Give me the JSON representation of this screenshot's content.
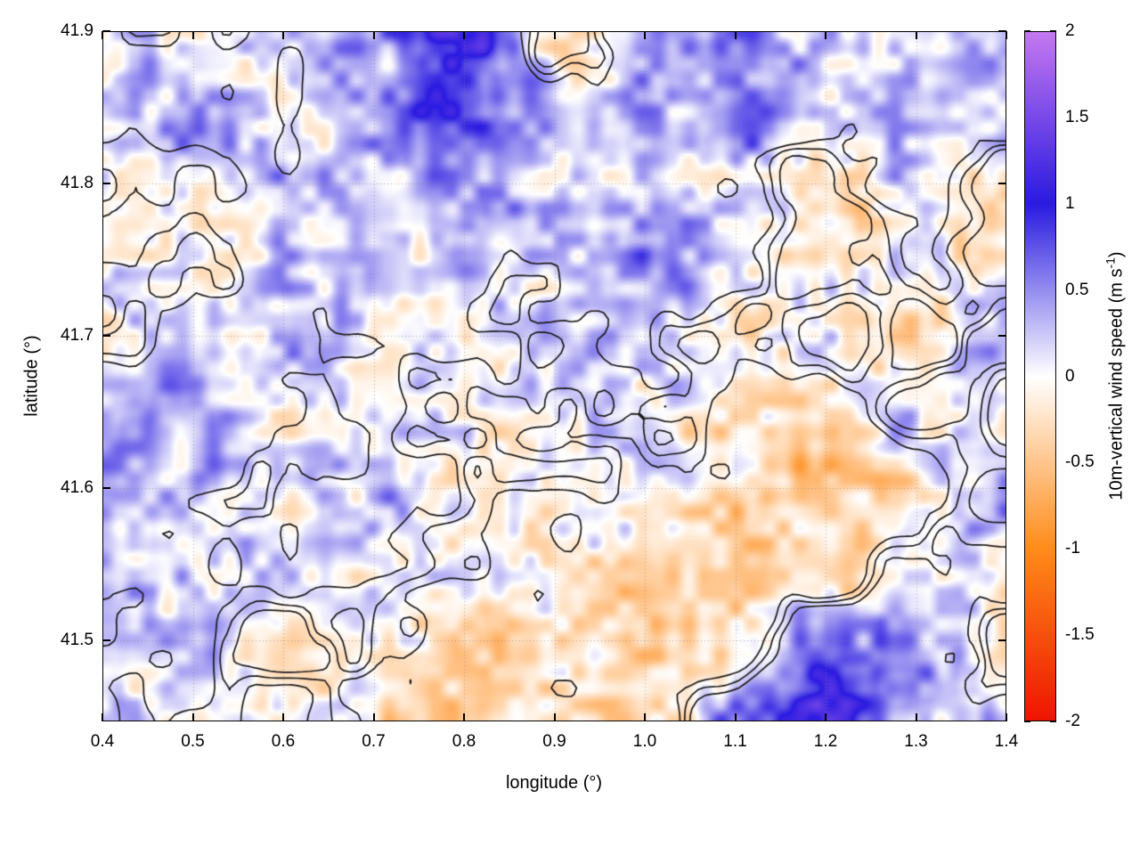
{
  "figure": {
    "background": "#ffffff"
  },
  "chart_data": {
    "type": "heatmap",
    "title": "",
    "xlabel": "longitude (°)",
    "ylabel": "latitude (°)",
    "x_range": [
      0.4,
      1.4
    ],
    "y_range": [
      41.447,
      41.9
    ],
    "x_ticks": [
      "0.4",
      "0.5",
      "0.6",
      "0.7",
      "0.8",
      "0.9",
      "1.0",
      "1.1",
      "1.2",
      "1.3",
      "1.4"
    ],
    "y_ticks": [
      "41.5",
      "41.6",
      "41.7",
      "41.8",
      "41.9"
    ],
    "grid": true,
    "colorbar": {
      "label_main": "10m-vertical wind speed (m s",
      "label_sup": "-1",
      "label_close": ")",
      "range": [
        -2,
        2
      ],
      "ticks": [
        "2",
        "1.5",
        "1",
        "0.5",
        "0",
        "-0.5",
        "-1",
        "-1.5",
        "-2"
      ],
      "palette_stops": [
        {
          "value": -2,
          "color": "#ee1400"
        },
        {
          "value": -1,
          "color": "#ff8c1a"
        },
        {
          "value": 0,
          "color": "#ffffff"
        },
        {
          "value": 1,
          "color": "#2a1ae0"
        },
        {
          "value": 2,
          "color": "#c478f0"
        }
      ]
    },
    "contours": {
      "color": "#1a1a1a",
      "levels": [
        -0.1,
        0,
        0.1
      ],
      "labeled": false
    },
    "field": {
      "units": "m s-1",
      "noise_amplitude": 0.5,
      "grid_lons": [
        0.4,
        0.5,
        0.6,
        0.7,
        0.8,
        0.9,
        1.0,
        1.1,
        1.2,
        1.3,
        1.4
      ],
      "grid_lats": [
        41.9,
        41.85,
        41.8,
        41.75,
        41.7,
        41.65,
        41.6,
        41.55,
        41.5,
        41.45
      ],
      "values": [
        [
          0.15,
          0.1,
          0.2,
          0.3,
          1.3,
          -0.4,
          0.3,
          0.4,
          0.2,
          0.3,
          0.25
        ],
        [
          0.2,
          0.25,
          0.15,
          0.25,
          0.9,
          0.3,
          0.4,
          0.5,
          0.3,
          0.2,
          0.35
        ],
        [
          0.1,
          0.15,
          0.2,
          0.3,
          0.4,
          0.2,
          0.3,
          0.2,
          -0.2,
          0.25,
          -0.3
        ],
        [
          0.05,
          0.05,
          0.2,
          0.3,
          0.2,
          0.1,
          0.55,
          0.15,
          -0.3,
          0.15,
          -0.35
        ],
        [
          0.05,
          0.1,
          0.3,
          0.15,
          0.1,
          0.05,
          0.15,
          -0.2,
          0.25,
          -0.3,
          0.2
        ],
        [
          0.3,
          0.4,
          0.1,
          0.15,
          0.05,
          0.02,
          0.1,
          -0.3,
          -0.4,
          0.25,
          -0.2
        ],
        [
          0.5,
          0.2,
          0.1,
          0.25,
          0.05,
          -0.1,
          -0.05,
          -0.25,
          -0.5,
          -0.3,
          0.3
        ],
        [
          0.2,
          0.1,
          0.15,
          0.1,
          -0.05,
          -0.2,
          -0.3,
          -0.55,
          -0.4,
          0.2,
          0.1
        ],
        [
          0.1,
          0.15,
          -0.2,
          0.0,
          -0.3,
          -0.15,
          -0.4,
          -0.3,
          0.8,
          0.4,
          -0.2
        ],
        [
          0.2,
          0.05,
          0.1,
          -0.2,
          -0.4,
          -0.25,
          -0.3,
          0.5,
          1.0,
          0.3,
          0.2
        ]
      ]
    }
  }
}
